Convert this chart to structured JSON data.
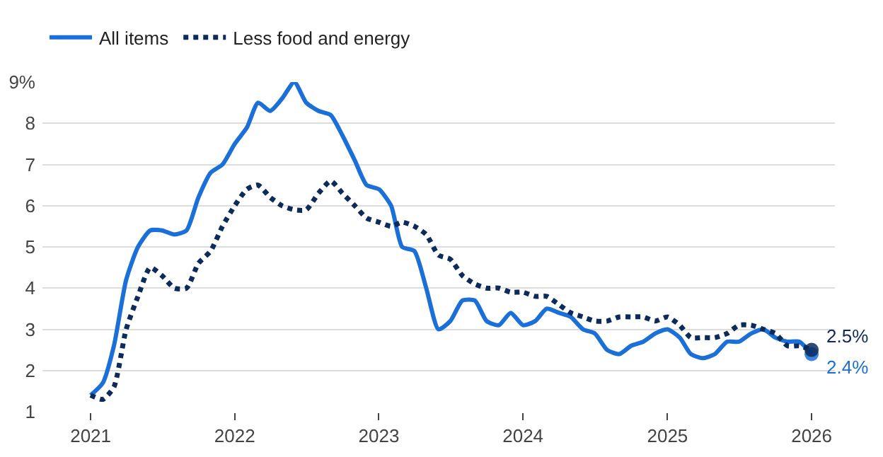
{
  "chart_data": {
    "type": "line",
    "x": [
      "2021-01",
      "2021-02",
      "2021-03",
      "2021-04",
      "2021-05",
      "2021-06",
      "2021-07",
      "2021-08",
      "2021-09",
      "2021-10",
      "2021-11",
      "2021-12",
      "2022-01",
      "2022-02",
      "2022-03",
      "2022-04",
      "2022-05",
      "2022-06",
      "2022-07",
      "2022-08",
      "2022-09",
      "2022-10",
      "2022-11",
      "2022-12",
      "2023-01",
      "2023-02",
      "2023-03",
      "2023-04",
      "2023-05",
      "2023-06",
      "2023-07",
      "2023-08",
      "2023-09",
      "2023-10",
      "2023-11",
      "2023-12",
      "2024-01",
      "2024-02",
      "2024-03",
      "2024-04",
      "2024-05",
      "2024-06",
      "2024-07",
      "2024-08",
      "2024-09",
      "2024-10",
      "2024-11",
      "2024-12",
      "2025-01",
      "2025-02",
      "2025-03",
      "2025-04",
      "2025-05",
      "2025-06",
      "2025-07",
      "2025-08",
      "2025-09",
      "2025-10",
      "2025-11",
      "2025-12",
      "2026-01"
    ],
    "series": [
      {
        "name": "All items",
        "color": "#1a6fd8",
        "line_style": "solid",
        "values": [
          1.4,
          1.7,
          2.6,
          4.2,
          5.0,
          5.4,
          5.4,
          5.3,
          5.4,
          6.2,
          6.8,
          7.0,
          7.5,
          7.9,
          8.5,
          8.3,
          8.6,
          9.0,
          8.5,
          8.3,
          8.2,
          7.7,
          7.1,
          6.5,
          6.4,
          6.0,
          5.0,
          4.9,
          4.0,
          3.0,
          3.2,
          3.7,
          3.7,
          3.2,
          3.1,
          3.4,
          3.1,
          3.2,
          3.5,
          3.4,
          3.3,
          3.0,
          2.9,
          2.5,
          2.4,
          2.6,
          2.7,
          2.9,
          3.0,
          2.8,
          2.4,
          2.3,
          2.4,
          2.7,
          2.7,
          2.9,
          3.0,
          2.8,
          2.7,
          2.7,
          2.4
        ]
      },
      {
        "name": "Less food and energy",
        "color": "#0c2a5c",
        "line_style": "dotted",
        "values": [
          1.4,
          1.3,
          1.6,
          3.0,
          3.8,
          4.5,
          4.3,
          4.0,
          4.0,
          4.6,
          4.9,
          5.5,
          6.0,
          6.4,
          6.5,
          6.2,
          6.0,
          5.9,
          5.9,
          6.3,
          6.6,
          6.3,
          6.0,
          5.7,
          5.6,
          5.5,
          5.6,
          5.5,
          5.3,
          4.8,
          4.7,
          4.3,
          4.1,
          4.0,
          4.0,
          3.9,
          3.9,
          3.8,
          3.8,
          3.6,
          3.4,
          3.3,
          3.2,
          3.2,
          3.3,
          3.3,
          3.3,
          3.2,
          3.3,
          3.1,
          2.8,
          2.8,
          2.8,
          2.9,
          3.1,
          3.1,
          3.0,
          2.9,
          2.6,
          2.6,
          2.5
        ]
      }
    ],
    "annotations": [
      {
        "text": "2.5%",
        "x": "2026-01",
        "y": 2.5
      },
      {
        "text": "2.4%",
        "x": "2026-01",
        "y": 2.4
      }
    ],
    "xlim": [
      "2020-09",
      "2026-03"
    ],
    "xticks": [
      "2021",
      "2022",
      "2023",
      "2024",
      "2025",
      "2026"
    ],
    "ylim": [
      1,
      9
    ],
    "yticks": [
      1,
      2,
      3,
      4,
      5,
      6,
      7,
      8,
      {
        "value": 9,
        "label": "9%"
      }
    ],
    "grid": "y",
    "legend": "top left",
    "marker": "none"
  }
}
